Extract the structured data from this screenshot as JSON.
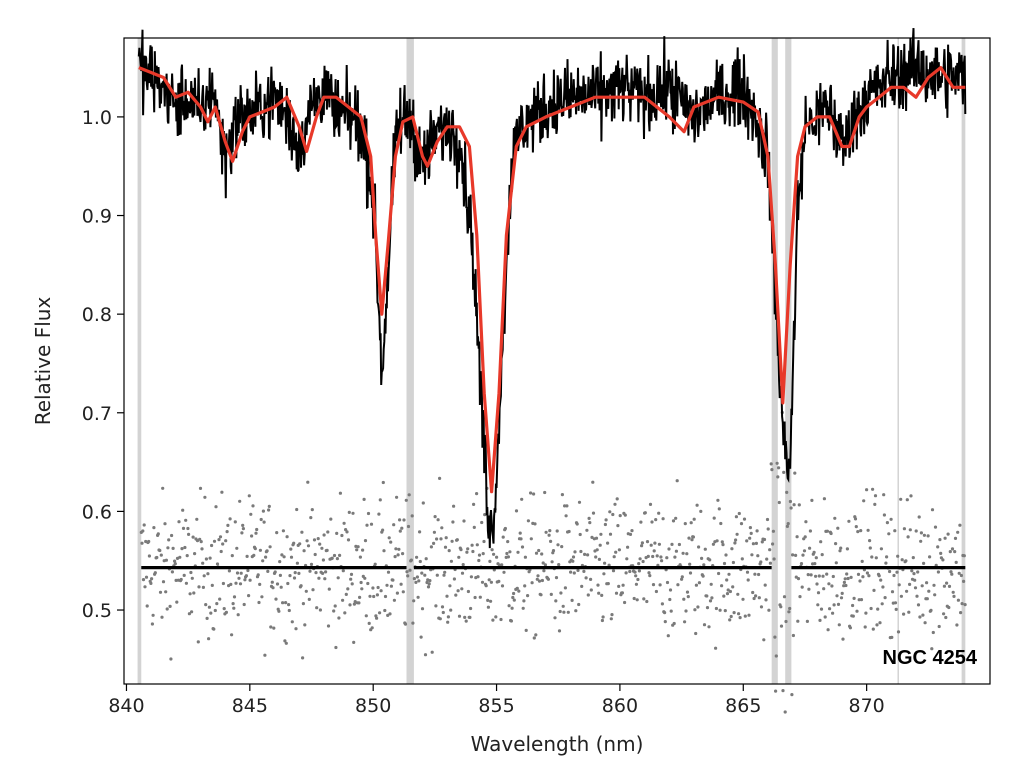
{
  "chart_data": {
    "type": "line",
    "title": "",
    "xlabel": "Wavelength (nm)",
    "ylabel": "Relative Flux",
    "xlim": [
      839.9,
      875.0
    ],
    "ylim": [
      0.425,
      1.08
    ],
    "xticks": [
      840,
      845,
      850,
      855,
      860,
      865,
      870
    ],
    "yticks": [
      0.5,
      0.6,
      0.7,
      0.8,
      0.9,
      1.0
    ],
    "xtick_labels": [
      "840",
      "845",
      "850",
      "855",
      "860",
      "865",
      "870"
    ],
    "ytick_labels": [
      "0.5",
      "0.6",
      "0.7",
      "0.8",
      "0.9",
      "1.0"
    ],
    "grid": false,
    "annotation": "NGC 4254",
    "masked_bands": [
      [
        840.45,
        840.6
      ],
      [
        851.35,
        851.65
      ],
      [
        866.15,
        866.4
      ],
      [
        866.7,
        866.95
      ],
      [
        871.25,
        871.3
      ],
      [
        873.85,
        874.0
      ]
    ],
    "residual_zero_level": 0.543,
    "absorption_lines": [
      {
        "center": 850.35,
        "depth_model": 0.8,
        "depth_data": 0.74
      },
      {
        "center": 854.8,
        "depth_model": 0.62,
        "depth_data": 0.575
      },
      {
        "center": 866.6,
        "depth_model": 0.71,
        "depth_data": 0.645
      }
    ],
    "series": [
      {
        "name": "",
        "role": "observed",
        "color": "#000000",
        "x": [
          840.5,
          841,
          841.5,
          842,
          842.5,
          843,
          843.5,
          844,
          844.5,
          845,
          845.5,
          846,
          846.5,
          847,
          847.5,
          848,
          848.5,
          849,
          849.5,
          850,
          850.2,
          850.35,
          850.5,
          850.8,
          851,
          851.5,
          852,
          852.5,
          853,
          853.5,
          854,
          854.3,
          854.6,
          854.8,
          855,
          855.3,
          855.6,
          856,
          857,
          858,
          859,
          860,
          861,
          862,
          863,
          864,
          865,
          865.5,
          866,
          866.3,
          866.6,
          866.9,
          867.2,
          867.5,
          868,
          868.5,
          869,
          869.5,
          870,
          871,
          872,
          873,
          874
        ],
        "y": [
          1.05,
          1.04,
          1.03,
          1.01,
          1.02,
          1.0,
          1.03,
          0.96,
          1.0,
          1.0,
          1.01,
          1.02,
          1.0,
          0.97,
          1.01,
          1.03,
          1.0,
          1.0,
          0.99,
          0.92,
          0.82,
          0.74,
          0.8,
          0.93,
          0.99,
          1.0,
          0.95,
          0.98,
          0.99,
          0.98,
          0.88,
          0.75,
          0.62,
          0.575,
          0.64,
          0.8,
          0.95,
          0.99,
          1.01,
          1.02,
          1.02,
          1.03,
          1.02,
          1.03,
          1.0,
          1.02,
          1.03,
          1.0,
          0.96,
          0.82,
          0.68,
          0.645,
          0.9,
          0.99,
          1.0,
          1.01,
          0.97,
          1.0,
          1.02,
          1.04,
          1.05,
          1.04,
          1.04
        ]
      },
      {
        "name": "",
        "role": "model",
        "color": "#e8392a",
        "x": [
          840.5,
          841,
          841.5,
          842,
          842.5,
          843,
          843.3,
          843.6,
          844,
          844.3,
          844.7,
          845,
          845.5,
          846,
          846.5,
          847,
          847.3,
          847.7,
          848,
          848.5,
          849,
          849.5,
          849.9,
          850.1,
          850.35,
          850.6,
          850.9,
          851.2,
          851.6,
          852,
          852.2,
          852.6,
          853,
          853.5,
          853.9,
          854.2,
          854.5,
          854.8,
          855.1,
          855.4,
          855.8,
          856.2,
          857,
          858,
          859,
          860,
          861,
          862,
          862.6,
          863,
          864,
          865,
          865.6,
          866,
          866.3,
          866.6,
          866.9,
          867.2,
          867.5,
          868,
          868.5,
          869,
          869.3,
          869.7,
          870,
          870.5,
          871,
          871.5,
          872,
          872.5,
          873,
          873.5,
          874
        ],
        "y": [
          1.05,
          1.045,
          1.04,
          1.02,
          1.025,
          1.01,
          0.995,
          1.01,
          0.975,
          0.955,
          0.985,
          1.0,
          1.005,
          1.01,
          1.02,
          0.99,
          0.965,
          1.0,
          1.02,
          1.02,
          1.01,
          1.0,
          0.96,
          0.88,
          0.8,
          0.87,
          0.96,
          0.995,
          1.0,
          0.96,
          0.95,
          0.975,
          0.99,
          0.99,
          0.97,
          0.88,
          0.72,
          0.62,
          0.72,
          0.88,
          0.97,
          0.99,
          1.0,
          1.01,
          1.02,
          1.02,
          1.02,
          1.0,
          0.985,
          1.01,
          1.02,
          1.015,
          1.005,
          0.96,
          0.85,
          0.71,
          0.85,
          0.96,
          0.99,
          1.0,
          1.0,
          0.97,
          0.97,
          1.0,
          1.01,
          1.02,
          1.03,
          1.03,
          1.02,
          1.04,
          1.05,
          1.03,
          1.03
        ]
      },
      {
        "name": "",
        "role": "residuals",
        "color": "#7a7a7a",
        "x": [
          840.6,
          874.0
        ],
        "y_center": 0.543,
        "y_spread": 0.035
      }
    ]
  }
}
